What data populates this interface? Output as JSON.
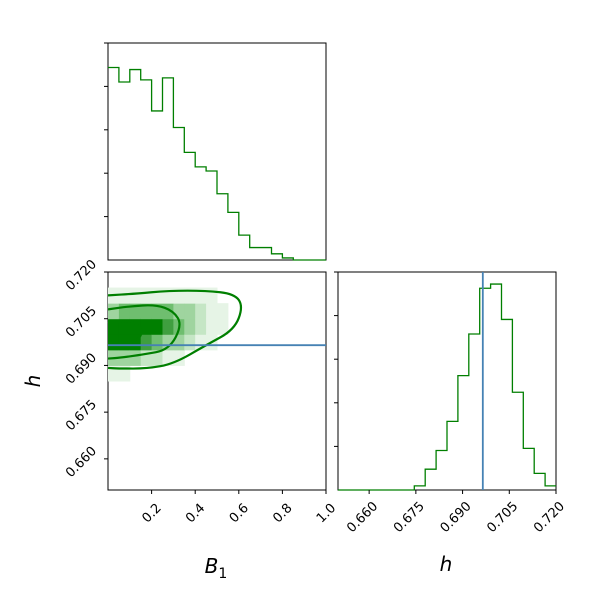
{
  "colors": {
    "posterior": "#007f00",
    "truth": "#4682b4",
    "density_scale": [
      "#ffffff",
      "#e6f4e6",
      "#c5e6c5",
      "#9fd49f",
      "#6fbe6f",
      "#3f9f3f",
      "#007f00"
    ]
  },
  "chart_data": [
    {
      "type": "histogram",
      "panel": "B1-marginal",
      "xlim": [
        0.0,
        1.0
      ],
      "bin_edges": [
        0.0,
        0.05,
        0.1,
        0.15,
        0.2,
        0.25,
        0.3,
        0.35,
        0.4,
        0.45,
        0.5,
        0.55,
        0.6,
        0.65,
        0.7,
        0.75,
        0.8,
        0.85,
        0.9,
        0.95,
        1.0
      ],
      "counts": [
        0.93,
        0.86,
        0.92,
        0.87,
        0.72,
        0.88,
        0.64,
        0.52,
        0.45,
        0.43,
        0.32,
        0.23,
        0.12,
        0.06,
        0.06,
        0.03,
        0.01,
        0.0,
        0.0,
        0.0
      ],
      "ylim": [
        0,
        1.0
      ],
      "y_tick_values": [
        0.2,
        0.4,
        0.6,
        0.8,
        1.0
      ]
    },
    {
      "type": "histogram",
      "panel": "h-marginal",
      "xlim": [
        0.65,
        0.72
      ],
      "x_ticks": [
        "0.660",
        "0.675",
        "0.690",
        "0.705",
        "0.720"
      ],
      "x_tick_values": [
        0.66,
        0.675,
        0.69,
        0.705,
        0.72
      ],
      "bin_edges": [
        0.65,
        0.6535,
        0.657,
        0.6605,
        0.664,
        0.6675,
        0.671,
        0.6745,
        0.678,
        0.6815,
        0.685,
        0.6885,
        0.692,
        0.6955,
        0.699,
        0.7025,
        0.706,
        0.7095,
        0.713,
        0.7165,
        0.72
      ],
      "counts": [
        0.0,
        0.0,
        0.0,
        0.0,
        0.0,
        0.0,
        0.0,
        0.02,
        0.1,
        0.19,
        0.33,
        0.55,
        0.75,
        0.97,
        0.99,
        0.82,
        0.47,
        0.2,
        0.08,
        0.02
      ],
      "ylim": [
        0,
        1.0
      ],
      "y_tick_values": [
        0.2,
        0.4,
        0.6,
        0.8,
        1.0
      ],
      "truth_x": 0.6965
    },
    {
      "type": "heatmap",
      "panel": "B1-h-joint",
      "x": "B1",
      "y": "h",
      "xlim": [
        0.0,
        1.0
      ],
      "ylim": [
        0.65,
        0.72
      ],
      "x_ticks": [
        "0.2",
        "0.4",
        "0.6",
        "0.8",
        "1.0"
      ],
      "x_tick_values": [
        0.2,
        0.4,
        0.6,
        0.8,
        1.0
      ],
      "y_ticks": [
        "0.660",
        "0.675",
        "0.690",
        "0.705",
        "0.720"
      ],
      "y_tick_values": [
        0.66,
        0.675,
        0.69,
        0.705,
        0.72
      ],
      "truth_y": 0.6965,
      "density_center": [
        0.1,
        0.6995
      ],
      "contours": [
        {
          "level": 0.39,
          "points": [
            [
              0.0,
              0.7035
            ],
            [
              0.07,
              0.7045
            ],
            [
              0.14,
              0.7035
            ],
            [
              0.16,
              0.6995
            ],
            [
              0.1,
              0.697
            ],
            [
              0.0,
              0.6968
            ]
          ]
        },
        {
          "level": 0.86,
          "points": [
            [
              0.0,
              0.708
            ],
            [
              0.1,
              0.709
            ],
            [
              0.22,
              0.7095
            ],
            [
              0.3,
              0.7075
            ],
            [
              0.34,
              0.703
            ],
            [
              0.28,
              0.695
            ],
            [
              0.16,
              0.6935
            ],
            [
              0.06,
              0.6925
            ],
            [
              0.0,
              0.6922
            ]
          ]
        },
        {
          "level": 0.99,
          "points": [
            [
              0.0,
              0.7125
            ],
            [
              0.12,
              0.713
            ],
            [
              0.28,
              0.714
            ],
            [
              0.45,
              0.714
            ],
            [
              0.58,
              0.713
            ],
            [
              0.62,
              0.709
            ],
            [
              0.58,
              0.7015
            ],
            [
              0.45,
              0.6965
            ],
            [
              0.3,
              0.6905
            ],
            [
              0.18,
              0.689
            ],
            [
              0.05,
              0.689
            ],
            [
              0.0,
              0.6892
            ]
          ]
        }
      ]
    }
  ],
  "axes": {
    "x_label_b1": "B",
    "x_label_b1_sub": "1",
    "x_label_h": "h",
    "y_label_h": "h"
  }
}
